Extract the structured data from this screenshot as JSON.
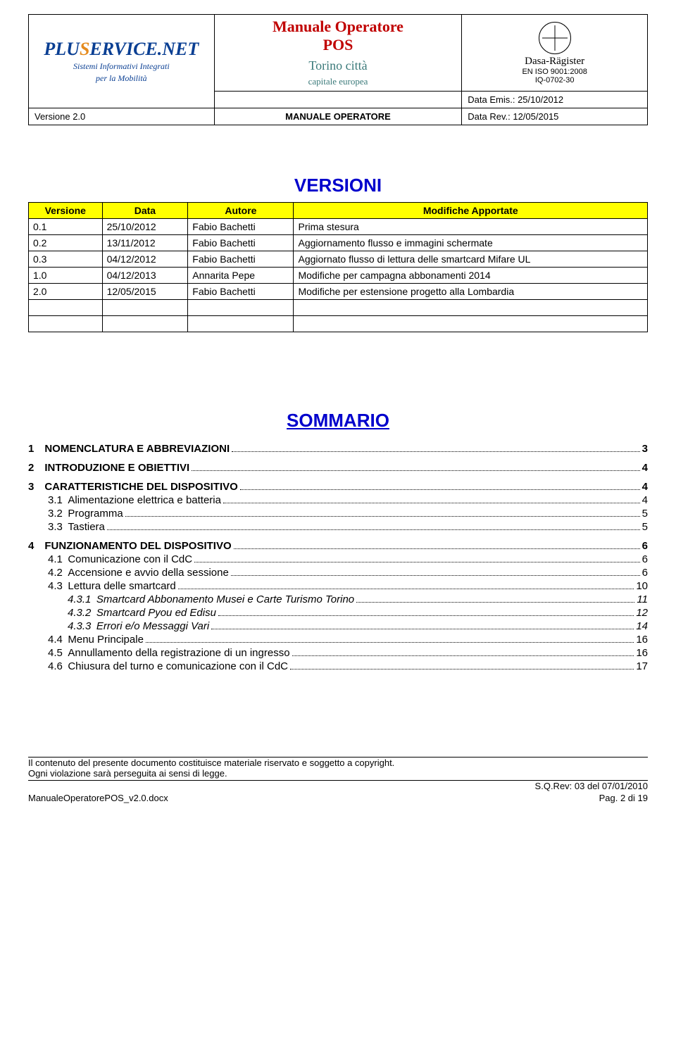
{
  "header": {
    "logo": {
      "brand_part1": "PLU",
      "brand_part2": "S",
      "brand_part3": "ERVICE",
      "brand_part4": ".NET",
      "tagline1": "Sistemi Informativi Integrati",
      "tagline2": "per la Mobilità"
    },
    "title_line1": "Manuale Operatore",
    "title_line2": "POS",
    "sublogo_line1": "Torino città",
    "sublogo_line2": "capitale europea",
    "cert": {
      "name": "Dasa-Rägister",
      "std": "EN ISO 9001:2008",
      "code": "IQ-0702-30"
    },
    "row2": {
      "versione": "Versione 2.0",
      "center": "MANUALE OPERATORE",
      "emis_label": "Data Emis.: ",
      "emis": "25/10/2012",
      "rev_label": "Data Rev.: ",
      "rev": "12/05/2015"
    }
  },
  "versions": {
    "heading": "VERSIONI",
    "columns": [
      "Versione",
      "Data",
      "Autore",
      "Modifiche Apportate"
    ],
    "rows": [
      [
        "0.1",
        "25/10/2012",
        "Fabio Bachetti",
        "Prima stesura"
      ],
      [
        "0.2",
        "13/11/2012",
        "Fabio Bachetti",
        "Aggiornamento flusso e immagini schermate"
      ],
      [
        "0.3",
        "04/12/2012",
        "Fabio Bachetti",
        "Aggiornato flusso di lettura delle smartcard Mifare UL"
      ],
      [
        "1.0",
        "04/12/2013",
        "Annarita Pepe",
        "Modifiche per campagna abbonamenti 2014"
      ],
      [
        "2.0",
        "12/05/2015",
        "Fabio Bachetti",
        "Modifiche per estensione progetto alla Lombardia"
      ],
      [
        "",
        "",
        "",
        ""
      ],
      [
        "",
        "",
        "",
        ""
      ]
    ]
  },
  "summary": {
    "heading": "SOMMARIO",
    "items": [
      {
        "level": 1,
        "num": "1",
        "title": "NOMENCLATURA E ABBREVIAZIONI",
        "page": "3"
      },
      {
        "level": 1,
        "num": "2",
        "title": "INTRODUZIONE E OBIETTIVI",
        "page": "4"
      },
      {
        "level": 1,
        "num": "3",
        "title": "CARATTERISTICHE DEL DISPOSITIVO",
        "page": "4"
      },
      {
        "level": 2,
        "num": "3.1",
        "title": "Alimentazione elettrica e batteria",
        "page": "4"
      },
      {
        "level": 2,
        "num": "3.2",
        "title": "Programma",
        "page": "5"
      },
      {
        "level": 2,
        "num": "3.3",
        "title": "Tastiera",
        "page": "5"
      },
      {
        "level": 1,
        "num": "4",
        "title": "FUNZIONAMENTO DEL DISPOSITIVO",
        "page": "6"
      },
      {
        "level": 2,
        "num": "4.1",
        "title": "Comunicazione con il CdC",
        "page": "6"
      },
      {
        "level": 2,
        "num": "4.2",
        "title": "Accensione e avvio della sessione",
        "page": "6"
      },
      {
        "level": 2,
        "num": "4.3",
        "title": "Lettura delle smartcard",
        "page": "10"
      },
      {
        "level": 3,
        "num": "4.3.1",
        "title": "Smartcard Abbonamento Musei e Carte Turismo Torino",
        "page": "11"
      },
      {
        "level": 3,
        "num": "4.3.2",
        "title": "Smartcard Pyou ed Edisu",
        "page": "12"
      },
      {
        "level": 3,
        "num": "4.3.3",
        "title": "Errori e/o Messaggi Vari",
        "page": "14"
      },
      {
        "level": 2,
        "num": "4.4",
        "title": "Menu Principale",
        "page": "16"
      },
      {
        "level": 2,
        "num": "4.5",
        "title": "Annullamento della registrazione di un ingresso",
        "page": "16"
      },
      {
        "level": 2,
        "num": "4.6",
        "title": "Chiusura del turno e comunicazione con il CdC",
        "page": "17"
      }
    ]
  },
  "footer": {
    "line1": "Il contenuto del presente documento costituisce materiale riservato e soggetto a copyright.",
    "line2": "Ogni violazione sarà perseguita ai sensi di legge.",
    "sqrev": "S.Q.Rev: 03 del 07/01/2010",
    "filename": "ManualeOperatorePOS_v2.0.docx",
    "page": "Pag. 2 di 19"
  }
}
